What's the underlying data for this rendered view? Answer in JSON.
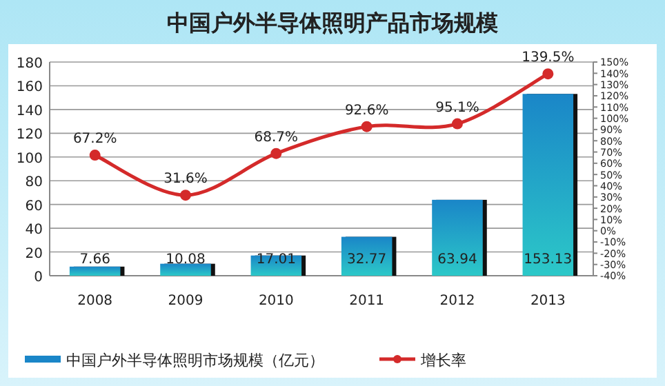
{
  "chart_data": {
    "type": "bar",
    "title": "中国户外半导体照明产品市场规模",
    "categories": [
      "2008",
      "2009",
      "2010",
      "2011",
      "2012",
      "2013"
    ],
    "series": [
      {
        "name": "中国户外半导体照明市场规模（亿元）",
        "color": "#1a86c8",
        "values": [
          7.66,
          10.08,
          17.01,
          32.77,
          63.94,
          153.13
        ],
        "value_labels": [
          "7.66",
          "10.08",
          "17.01",
          "32.77",
          "63.94",
          "153.13"
        ]
      },
      {
        "name": "增长率",
        "type": "line",
        "axis": "y2",
        "color": "#d42a2a",
        "marker": "circle",
        "line_style": "solid",
        "values": [
          67.2,
          31.6,
          68.7,
          92.6,
          95.1,
          139.5
        ],
        "value_labels": [
          "67.2%",
          "31.6%",
          "68.7%",
          "92.6%",
          "95.1%",
          "139.5%"
        ]
      }
    ],
    "ylim": [
      0,
      180
    ],
    "yticks": [
      0,
      20,
      40,
      60,
      80,
      100,
      120,
      140,
      160,
      180
    ],
    "y2lim": [
      -40,
      150
    ],
    "y2ticks": [
      {
        "value": -40,
        "label": "-40%"
      },
      {
        "value": -30,
        "label": "-30%"
      },
      {
        "value": -20,
        "label": "-20%"
      },
      {
        "value": -10,
        "label": "-10%"
      },
      {
        "value": 0,
        "label": "0%"
      },
      {
        "value": 10,
        "label": "10%"
      },
      {
        "value": 20,
        "label": "20%"
      },
      {
        "value": 30,
        "label": "30%"
      },
      {
        "value": 40,
        "label": "40%"
      },
      {
        "value": 50,
        "label": "50%"
      },
      {
        "value": 60,
        "label": "60%"
      },
      {
        "value": 70,
        "label": "70%"
      },
      {
        "value": 80,
        "label": "80%"
      },
      {
        "value": 90,
        "label": "90%"
      },
      {
        "value": 100,
        "label": "100%"
      },
      {
        "value": 110,
        "label": "110%"
      },
      {
        "value": 120,
        "label": "120%"
      },
      {
        "value": 130,
        "label": "130%"
      },
      {
        "value": 140,
        "label": "140%"
      },
      {
        "value": 150,
        "label": "150%"
      }
    ],
    "grid": "y",
    "legend": "bottom"
  }
}
